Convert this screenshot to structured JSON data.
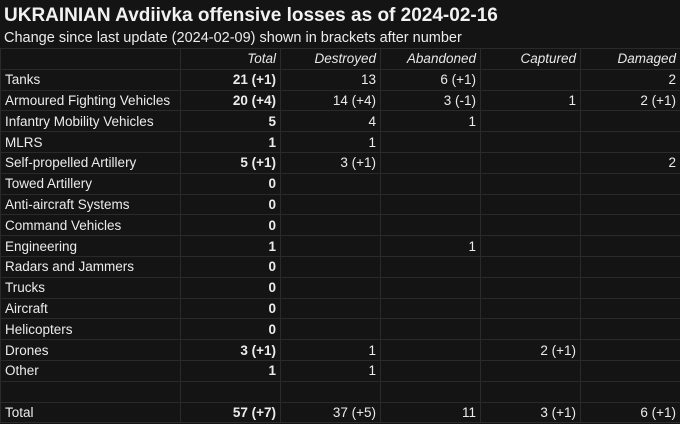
{
  "title": "UKRAINIAN Avdiivka offensive losses as of 2024-02-16",
  "subtitle": "Change since last update (2024-02-09) shown in brackets after number",
  "columns": [
    "",
    "Total",
    "Destroyed",
    "Abandoned",
    "Captured",
    "Damaged"
  ],
  "rows": [
    {
      "category": "Tanks",
      "total": "21 (+1)",
      "destroyed": "13",
      "abandoned": "6 (+1)",
      "captured": "",
      "damaged": "2"
    },
    {
      "category": "Armoured Fighting Vehicles",
      "total": "20 (+4)",
      "destroyed": "14 (+4)",
      "abandoned": "3 (-1)",
      "captured": "1",
      "damaged": "2 (+1)"
    },
    {
      "category": "Infantry Mobility Vehicles",
      "total": "5",
      "destroyed": "4",
      "abandoned": "1",
      "captured": "",
      "damaged": ""
    },
    {
      "category": "MLRS",
      "total": "1",
      "destroyed": "1",
      "abandoned": "",
      "captured": "",
      "damaged": ""
    },
    {
      "category": "Self-propelled Artillery",
      "total": "5 (+1)",
      "destroyed": "3 (+1)",
      "abandoned": "",
      "captured": "",
      "damaged": "2"
    },
    {
      "category": "Towed Artillery",
      "total": "0",
      "destroyed": "",
      "abandoned": "",
      "captured": "",
      "damaged": ""
    },
    {
      "category": "Anti-aircraft Systems",
      "total": "0",
      "destroyed": "",
      "abandoned": "",
      "captured": "",
      "damaged": ""
    },
    {
      "category": "Command Vehicles",
      "total": "0",
      "destroyed": "",
      "abandoned": "",
      "captured": "",
      "damaged": ""
    },
    {
      "category": "Engineering",
      "total": "1",
      "destroyed": "",
      "abandoned": "1",
      "captured": "",
      "damaged": ""
    },
    {
      "category": "Radars and Jammers",
      "total": "0",
      "destroyed": "",
      "abandoned": "",
      "captured": "",
      "damaged": ""
    },
    {
      "category": "Trucks",
      "total": "0",
      "destroyed": "",
      "abandoned": "",
      "captured": "",
      "damaged": ""
    },
    {
      "category": "Aircraft",
      "total": "0",
      "destroyed": "",
      "abandoned": "",
      "captured": "",
      "damaged": ""
    },
    {
      "category": "Helicopters",
      "total": "0",
      "destroyed": "",
      "abandoned": "",
      "captured": "",
      "damaged": ""
    },
    {
      "category": "Drones",
      "total": "3 (+1)",
      "destroyed": "1",
      "abandoned": "",
      "captured": "2 (+1)",
      "damaged": ""
    },
    {
      "category": "Other",
      "total": "1",
      "destroyed": "1",
      "abandoned": "",
      "captured": "",
      "damaged": ""
    },
    {
      "category": "",
      "total": "",
      "destroyed": "",
      "abandoned": "",
      "captured": "",
      "damaged": ""
    },
    {
      "category": "Total",
      "total": "57 (+7)",
      "destroyed": "37 (+5)",
      "abandoned": "11",
      "captured": "3 (+1)",
      "damaged": "6 (+1)"
    }
  ]
}
